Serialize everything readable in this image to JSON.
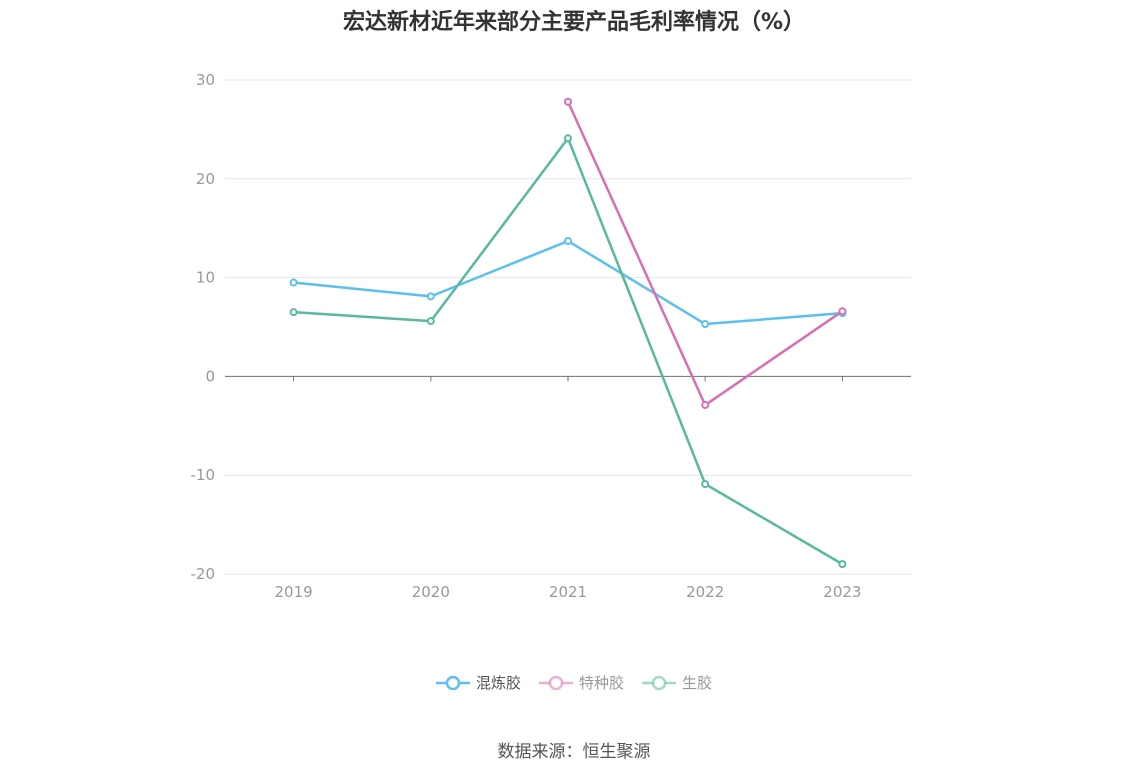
{
  "chart_data": {
    "type": "line",
    "title": "宏达新材近年来部分主要产品毛利率情况（%）",
    "categories": [
      "2019",
      "2020",
      "2021",
      "2022",
      "2023"
    ],
    "ylim": [
      -20,
      30
    ],
    "yticks": [
      30,
      20,
      10,
      0,
      -10,
      -20
    ],
    "grid": true,
    "legend_position": "bottom",
    "series": [
      {
        "name": "混炼胶",
        "color": "#5bc0ee",
        "values": [
          9.5,
          8.1,
          13.7,
          5.3,
          6.4
        ]
      },
      {
        "name": "特种胶",
        "color": "#d96fb3",
        "values": [
          null,
          null,
          27.8,
          -2.9,
          6.6
        ]
      },
      {
        "name": "生胶",
        "color": "#58b9a0",
        "values": [
          6.5,
          5.6,
          24.1,
          -10.9,
          -19.0
        ]
      }
    ]
  },
  "source": "数据来源：恒生聚源"
}
